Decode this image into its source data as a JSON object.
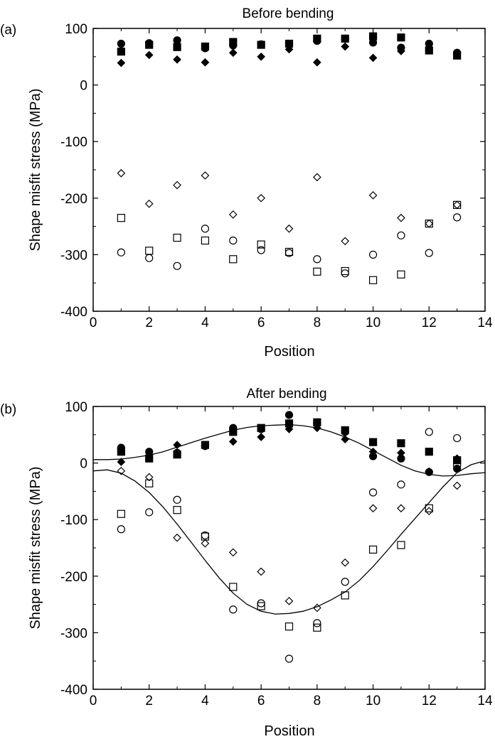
{
  "chart_data": [
    {
      "type": "scatter",
      "panel_label": "(a)",
      "title": "Before bending",
      "xlabel": "Position",
      "ylabel": "Shape misfit stress (MPa)",
      "xlim": [
        0,
        14
      ],
      "ylim": [
        -400,
        100
      ],
      "xticks": [
        0,
        2,
        4,
        6,
        8,
        10,
        12,
        14
      ],
      "yticks": [
        100,
        0,
        -100,
        -200,
        -300,
        -400
      ],
      "grid": false,
      "legend": "none",
      "series": [
        {
          "marker": "filled-circle",
          "x": [
            1,
            2,
            3,
            4,
            5,
            6,
            7,
            8,
            9,
            10,
            11,
            12,
            13
          ],
          "y": [
            73,
            74,
            79,
            65,
            70,
            72,
            73,
            78,
            82,
            75,
            66,
            73,
            57
          ]
        },
        {
          "marker": "filled-square",
          "x": [
            1,
            2,
            3,
            4,
            5,
            6,
            7,
            8,
            9,
            10,
            11,
            12,
            13
          ],
          "y": [
            59,
            71,
            67,
            68,
            76,
            71,
            73,
            82,
            82,
            86,
            84,
            61,
            52
          ]
        },
        {
          "marker": "filled-diamond",
          "x": [
            1,
            2,
            3,
            4,
            5,
            6,
            7,
            8,
            9,
            10,
            11,
            12,
            13
          ],
          "y": [
            39,
            53,
            45,
            40,
            57,
            50,
            63,
            40,
            68,
            48,
            60,
            62,
            55
          ]
        },
        {
          "marker": "open-diamond",
          "x": [
            1,
            2,
            3,
            4,
            5,
            6,
            7,
            8,
            9,
            10,
            11,
            12,
            13
          ],
          "y": [
            -156,
            -210,
            -177,
            -160,
            -229,
            -200,
            -254,
            -163,
            -276,
            -195,
            -235,
            -245,
            -212
          ]
        },
        {
          "marker": "open-square",
          "x": [
            1,
            2,
            3,
            4,
            5,
            6,
            7,
            8,
            9,
            10,
            11,
            12,
            13
          ],
          "y": [
            -235,
            -293,
            -270,
            -275,
            -308,
            -282,
            -295,
            -330,
            -329,
            -345,
            -335,
            -245,
            -212
          ]
        },
        {
          "marker": "open-circle",
          "x": [
            1,
            2,
            3,
            4,
            5,
            6,
            7,
            8,
            9,
            10,
            11,
            12,
            13
          ],
          "y": [
            -296,
            -306,
            -320,
            -254,
            -275,
            -292,
            -297,
            -308,
            -333,
            -300,
            -266,
            -297,
            -234
          ]
        }
      ]
    },
    {
      "type": "scatter",
      "panel_label": "(b)",
      "title": "After bending",
      "xlabel": "Position",
      "ylabel": "Shape misfit stress (MPa)",
      "xlim": [
        0,
        14
      ],
      "ylim": [
        -400,
        100
      ],
      "xticks": [
        0,
        2,
        4,
        6,
        8,
        10,
        12,
        14
      ],
      "yticks": [
        100,
        0,
        -100,
        -200,
        -300,
        -400
      ],
      "grid": false,
      "legend": "none",
      "series": [
        {
          "marker": "filled-circle",
          "x": [
            1,
            2,
            3,
            4,
            5,
            6,
            7,
            8,
            9,
            10,
            11,
            12,
            13
          ],
          "y": [
            27,
            20,
            18,
            30,
            62,
            60,
            85,
            70,
            55,
            12,
            8,
            -16,
            -10
          ]
        },
        {
          "marker": "filled-square",
          "x": [
            1,
            2,
            3,
            4,
            5,
            6,
            7,
            8,
            9,
            10,
            11,
            12,
            13
          ],
          "y": [
            20,
            8,
            15,
            32,
            55,
            62,
            70,
            72,
            58,
            37,
            35,
            20,
            5
          ]
        },
        {
          "marker": "filled-diamond",
          "x": [
            1,
            2,
            3,
            4,
            5,
            6,
            7,
            8,
            9,
            10,
            11,
            12,
            13
          ],
          "y": [
            2,
            8,
            32,
            30,
            38,
            46,
            60,
            62,
            42,
            20,
            18,
            -15,
            8
          ]
        },
        {
          "marker": "open-diamond",
          "x": [
            1,
            2,
            3,
            4,
            5,
            6,
            7,
            8,
            9,
            10,
            11,
            12,
            13
          ],
          "y": [
            -14,
            -25,
            -132,
            -142,
            -158,
            -192,
            -244,
            -256,
            -176,
            -80,
            -80,
            -85,
            -40
          ]
        },
        {
          "marker": "open-square",
          "x": [
            1,
            2,
            3,
            4,
            5,
            6,
            7,
            8,
            9,
            10,
            11,
            12,
            13
          ],
          "y": [
            -90,
            -36,
            -83,
            -130,
            -219,
            -253,
            -289,
            -291,
            -234,
            -153,
            -145,
            -80,
            0
          ]
        },
        {
          "marker": "open-circle",
          "x": [
            1,
            2,
            3,
            4,
            5,
            6,
            7,
            8,
            9,
            10,
            11,
            12,
            13
          ],
          "y": [
            -117,
            -87,
            -65,
            -128,
            -259,
            -248,
            -346,
            -283,
            -210,
            -52,
            -38,
            55,
            44
          ]
        }
      ],
      "fit_curves": [
        {
          "name": "",
          "x": [
            0,
            0.5,
            1,
            1.5,
            2,
            2.5,
            3,
            3.5,
            4,
            4.5,
            5,
            5.5,
            6,
            6.5,
            7,
            7.5,
            8,
            8.5,
            9,
            9.5,
            10,
            10.5,
            11,
            11.5,
            12,
            12.5,
            13,
            13.5,
            14
          ],
          "y": [
            6,
            6,
            7,
            10,
            14,
            20,
            28,
            36,
            44,
            51,
            58,
            63,
            66,
            67,
            68,
            66,
            62,
            55,
            46,
            35,
            22,
            9,
            -4,
            -14,
            -20,
            -23,
            -22,
            -19,
            -17
          ]
        },
        {
          "name": "",
          "x": [
            0,
            0.5,
            1,
            1.5,
            2,
            2.5,
            3,
            3.5,
            4,
            4.5,
            5,
            5.5,
            6,
            6.5,
            7,
            7.5,
            8,
            8.5,
            9,
            9.5,
            10,
            10.5,
            11,
            11.5,
            12,
            12.5,
            13,
            13.5,
            14
          ],
          "y": [
            -14,
            -12,
            -18,
            -32,
            -52,
            -78,
            -108,
            -140,
            -172,
            -203,
            -230,
            -250,
            -262,
            -267,
            -266,
            -262,
            -254,
            -242,
            -228,
            -208,
            -183,
            -155,
            -126,
            -98,
            -70,
            -42,
            -17,
            -3,
            4
          ]
        }
      ]
    }
  ]
}
